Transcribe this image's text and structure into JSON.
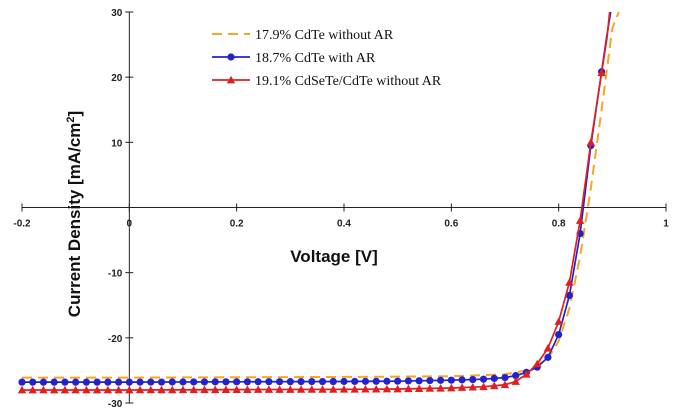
{
  "chart_data": {
    "type": "line",
    "xlabel": "Voltage [V]",
    "ylabel_main": "Current Density [mA/cm",
    "ylabel_sup": "2",
    "ylabel_close": "]",
    "xlim": [
      -0.2,
      1.0
    ],
    "ylim": [
      -30,
      30
    ],
    "x_ticks": [
      -0.2,
      0,
      0.2,
      0.4,
      0.6,
      0.8,
      1
    ],
    "x_tick_labels": [
      "-0.2",
      "0",
      "0.2",
      "0.4",
      "0.6",
      "0.8",
      "1"
    ],
    "y_ticks": [
      30,
      20,
      10,
      0,
      -10,
      -20,
      -30
    ],
    "y_tick_labels": [
      "30",
      "20",
      "10",
      "0",
      "-10",
      "-20",
      "-30"
    ],
    "grid": false,
    "legend_position": "top-left",
    "series": [
      {
        "name": "17.9% CdTe without AR",
        "color": "#F5A623",
        "style": "dashed",
        "marker": "none",
        "points": [
          [
            -0.2,
            -26.1
          ],
          [
            0.0,
            -26.1
          ],
          [
            0.2,
            -26.05
          ],
          [
            0.4,
            -26.0
          ],
          [
            0.6,
            -25.9
          ],
          [
            0.7,
            -25.6
          ],
          [
            0.74,
            -25.0
          ],
          [
            0.78,
            -23.2
          ],
          [
            0.8,
            -20.5
          ],
          [
            0.82,
            -15.5
          ],
          [
            0.84,
            -7.5
          ],
          [
            0.86,
            3.0
          ],
          [
            0.88,
            15.0
          ],
          [
            0.9,
            27.5
          ],
          [
            0.912,
            30.0
          ]
        ]
      },
      {
        "name": "18.7% CdTe with AR",
        "color": "#2323CC",
        "style": "solid",
        "marker": "circle",
        "points": [
          [
            -0.2,
            -26.8
          ],
          [
            0.0,
            -26.8
          ],
          [
            0.2,
            -26.75
          ],
          [
            0.4,
            -26.7
          ],
          [
            0.5,
            -26.65
          ],
          [
            0.6,
            -26.5
          ],
          [
            0.66,
            -26.35
          ],
          [
            0.7,
            -26.1
          ],
          [
            0.72,
            -25.8
          ],
          [
            0.74,
            -25.3
          ],
          [
            0.76,
            -24.5
          ],
          [
            0.78,
            -23.0
          ],
          [
            0.8,
            -19.5
          ],
          [
            0.82,
            -13.5
          ],
          [
            0.84,
            -4.0
          ],
          [
            0.86,
            9.5
          ],
          [
            0.89,
            26.5
          ],
          [
            0.897,
            30.0
          ]
        ]
      },
      {
        "name": "19.1% CdSeTe/CdTe without AR",
        "color": "#E02020",
        "style": "solid",
        "marker": "triangle",
        "points": [
          [
            -0.2,
            -28.0
          ],
          [
            0.0,
            -28.0
          ],
          [
            0.2,
            -27.95
          ],
          [
            0.4,
            -27.9
          ],
          [
            0.5,
            -27.85
          ],
          [
            0.6,
            -27.7
          ],
          [
            0.66,
            -27.5
          ],
          [
            0.7,
            -27.2
          ],
          [
            0.72,
            -26.7
          ],
          [
            0.74,
            -25.6
          ],
          [
            0.76,
            -24.0
          ],
          [
            0.78,
            -21.6
          ],
          [
            0.8,
            -17.5
          ],
          [
            0.82,
            -11.5
          ],
          [
            0.84,
            -2.0
          ],
          [
            0.86,
            10.0
          ],
          [
            0.89,
            26.0
          ],
          [
            0.895,
            30.0
          ]
        ]
      }
    ]
  }
}
